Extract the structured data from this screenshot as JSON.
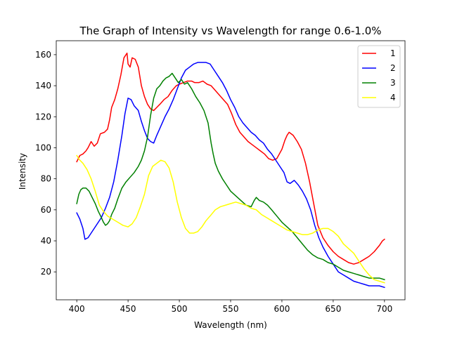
{
  "chart_data": {
    "type": "line",
    "title": "The Graph of Intensity vs Wavelength  for range 0.6-1.0%",
    "xlabel": "Wavelength (nm)",
    "ylabel": "Intensity",
    "xlim": [
      380,
      720
    ],
    "ylim": [
      2,
      169
    ],
    "xticks": [
      400,
      450,
      500,
      550,
      600,
      650,
      700
    ],
    "yticks": [
      20,
      40,
      60,
      80,
      100,
      120,
      140,
      160
    ],
    "grid": false,
    "legend": {
      "placement": "top-right"
    },
    "series": [
      {
        "name": "1",
        "color": "#ff0000",
        "x": [
          400,
          403,
          406,
          409,
          411,
          414,
          417,
          420,
          423,
          427,
          430,
          432,
          434,
          437,
          440,
          443,
          446,
          449,
          450,
          452,
          454,
          457,
          460,
          463,
          466,
          469,
          472,
          475,
          478,
          481,
          485,
          489,
          493,
          497,
          500,
          504,
          508,
          512,
          515,
          519,
          523,
          527,
          531,
          535,
          539,
          543,
          547,
          551,
          555,
          559,
          563,
          567,
          571,
          575,
          579,
          583,
          587,
          591,
          595,
          600,
          603,
          605,
          607,
          611,
          615,
          619,
          623,
          627,
          631,
          635,
          640,
          645,
          650,
          655,
          660,
          665,
          670,
          675,
          680,
          685,
          690,
          695,
          698,
          700
        ],
        "y": [
          91,
          95,
          96,
          98,
          100,
          104,
          101,
          103,
          109,
          110,
          112,
          118,
          126,
          131,
          138,
          147,
          158,
          161,
          154,
          152,
          158,
          157,
          152,
          140,
          133,
          128,
          125,
          124,
          126,
          128,
          131,
          133,
          137,
          140,
          141,
          142,
          143,
          143,
          142,
          142,
          143,
          141,
          140,
          137,
          134,
          131,
          128,
          122,
          115,
          110,
          107,
          104,
          102,
          100,
          98,
          96,
          93,
          92,
          93,
          99,
          105,
          108,
          110,
          108,
          104,
          99,
          90,
          78,
          64,
          50,
          42,
          37,
          33,
          30,
          28,
          26,
          25,
          26,
          28,
          30,
          33,
          37,
          40,
          41
        ]
      },
      {
        "name": "2",
        "color": "#0000ff",
        "x": [
          400,
          403,
          406,
          408,
          411,
          414,
          417,
          420,
          424,
          428,
          432,
          436,
          440,
          444,
          447,
          450,
          453,
          456,
          460,
          463,
          466,
          469,
          472,
          475,
          478,
          482,
          486,
          490,
          494,
          498,
          502,
          506,
          510,
          514,
          518,
          522,
          526,
          530,
          534,
          538,
          542,
          546,
          550,
          554,
          558,
          562,
          566,
          570,
          574,
          578,
          582,
          586,
          590,
          594,
          598,
          602,
          605,
          608,
          612,
          616,
          620,
          624,
          628,
          632,
          636,
          640,
          645,
          650,
          655,
          660,
          665,
          670,
          675,
          680,
          685,
          690,
          695,
          700
        ],
        "y": [
          58,
          54,
          48,
          41,
          42,
          45,
          48,
          51,
          55,
          61,
          68,
          78,
          92,
          108,
          122,
          132,
          131,
          127,
          124,
          117,
          111,
          106,
          104,
          103,
          108,
          114,
          120,
          125,
          131,
          138,
          145,
          150,
          152,
          154,
          155,
          155,
          155,
          154,
          150,
          146,
          142,
          137,
          131,
          126,
          120,
          116,
          113,
          110,
          108,
          105,
          103,
          99,
          96,
          92,
          88,
          84,
          78,
          77,
          79,
          76,
          72,
          67,
          60,
          50,
          42,
          36,
          30,
          25,
          20,
          18,
          16,
          14,
          13,
          12,
          11,
          11,
          11,
          10
        ]
      },
      {
        "name": "3",
        "color": "#008000",
        "x": [
          400,
          402,
          404,
          406,
          409,
          412,
          415,
          418,
          421,
          424,
          426,
          428,
          430,
          432,
          434,
          437,
          440,
          444,
          448,
          452,
          456,
          460,
          463,
          466,
          469,
          472,
          475,
          478,
          481,
          484,
          487,
          490,
          493,
          496,
          499,
          502,
          505,
          508,
          512,
          516,
          520,
          524,
          528,
          531,
          533,
          535,
          538,
          542,
          546,
          550,
          555,
          560,
          565,
          570,
          573,
          575,
          578,
          582,
          586,
          590,
          595,
          600,
          605,
          610,
          615,
          620,
          625,
          630,
          635,
          640,
          645,
          650,
          655,
          660,
          665,
          670,
          675,
          680,
          685,
          690,
          695,
          700
        ],
        "y": [
          64,
          70,
          73,
          74,
          74,
          72,
          68,
          64,
          59,
          55,
          52,
          50,
          51,
          53,
          57,
          61,
          67,
          74,
          78,
          81,
          84,
          88,
          92,
          98,
          107,
          121,
          132,
          138,
          140,
          143,
          145,
          146,
          148,
          145,
          142,
          144,
          141,
          142,
          138,
          133,
          129,
          124,
          116,
          103,
          96,
          90,
          85,
          80,
          76,
          72,
          69,
          66,
          63,
          62,
          66,
          68,
          66,
          65,
          63,
          60,
          56,
          52,
          49,
          46,
          42,
          38,
          34,
          31,
          29,
          28,
          26,
          25,
          23,
          21,
          20,
          19,
          18,
          17,
          16,
          16,
          16,
          15
        ]
      },
      {
        "name": "4",
        "color": "#ffff00",
        "x": [
          400,
          403,
          406,
          410,
          414,
          418,
          422,
          426,
          430,
          435,
          440,
          445,
          450,
          454,
          458,
          462,
          466,
          470,
          474,
          478,
          482,
          486,
          490,
          494,
          498,
          502,
          506,
          510,
          514,
          518,
          522,
          526,
          530,
          535,
          540,
          545,
          550,
          555,
          560,
          565,
          570,
          575,
          580,
          585,
          590,
          595,
          600,
          605,
          610,
          615,
          620,
          625,
          630,
          635,
          640,
          645,
          650,
          655,
          660,
          665,
          670,
          675,
          680,
          685,
          690,
          695,
          700
        ],
        "y": [
          95,
          92,
          90,
          86,
          80,
          72,
          63,
          59,
          56,
          54,
          52,
          50,
          49,
          51,
          55,
          62,
          70,
          82,
          88,
          90,
          92,
          91,
          87,
          78,
          65,
          55,
          48,
          45,
          45,
          46,
          49,
          53,
          56,
          60,
          62,
          63,
          64,
          65,
          64,
          63,
          61,
          60,
          57,
          55,
          53,
          51,
          49,
          47,
          46,
          45,
          44,
          44,
          45,
          47,
          48,
          48,
          46,
          43,
          38,
          35,
          32,
          27,
          22,
          18,
          15,
          14,
          13
        ]
      }
    ]
  }
}
